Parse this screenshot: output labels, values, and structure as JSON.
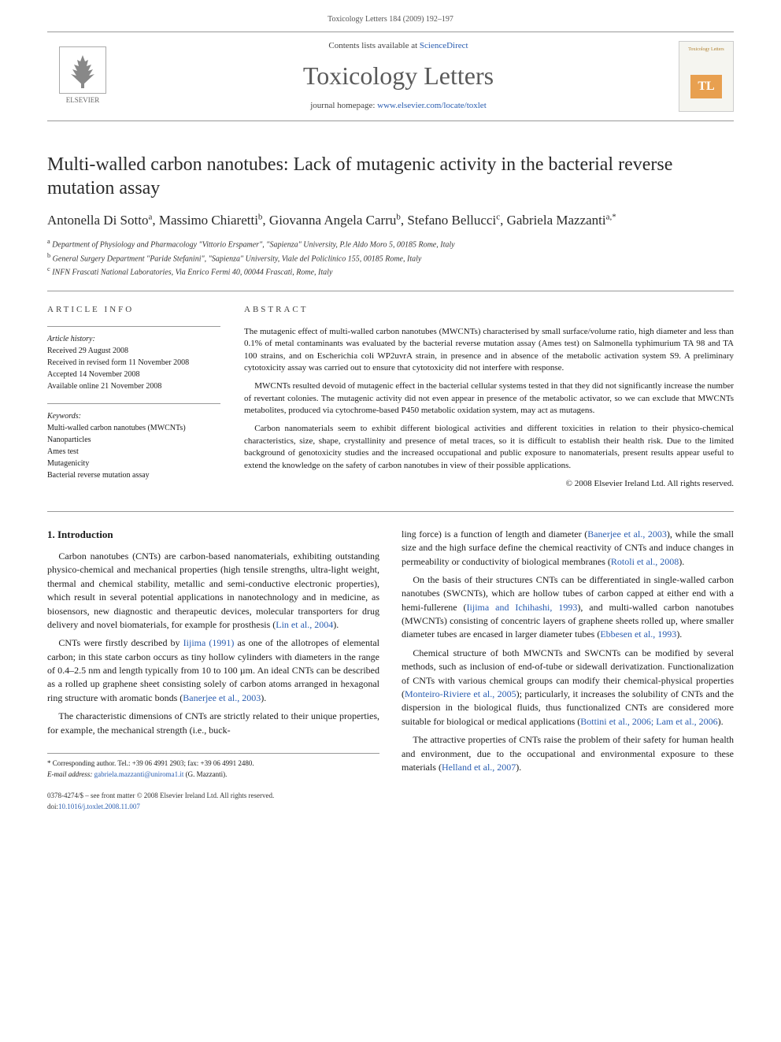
{
  "header": {
    "running": "Toxicology Letters 184 (2009) 192–197"
  },
  "contentsBar": {
    "listsLine_pre": "Contents lists available at ",
    "listsLine_link": "ScienceDirect",
    "journal": "Toxicology Letters",
    "homepage_pre": "journal homepage: ",
    "homepage_link": "www.elsevier.com/locate/toxlet",
    "publisher": "ELSEVIER",
    "coverTitle": "Toxicology Letters",
    "coverBadge": "TL"
  },
  "title": "Multi-walled carbon nanotubes: Lack of mutagenic activity in the bacterial reverse mutation assay",
  "authors_html": "Antonella Di Sotto<sup>a</sup>, Massimo Chiaretti<sup>b</sup>, Giovanna Angela Carru<sup>b</sup>, Stefano Bellucci<sup>c</sup>, Gabriela Mazzanti<sup>a,*</sup>",
  "affiliations": [
    "a Department of Physiology and Pharmacology \"Vittorio Erspamer\", \"Sapienza\" University, P.le Aldo Moro 5, 00185 Rome, Italy",
    "b General Surgery Department \"Paride Stefanini\", \"Sapienza\" University, Viale del Policlinico 155, 00185 Rome, Italy",
    "c INFN Frascati National Laboratories, Via Enrico Fermi 40, 00044 Frascati, Rome, Italy"
  ],
  "meta": {
    "heading_info": "ARTICLE INFO",
    "heading_abstract": "ABSTRACT",
    "history_label": "Article history:",
    "history": [
      "Received 29 August 2008",
      "Received in revised form 11 November 2008",
      "Accepted 14 November 2008",
      "Available online 21 November 2008"
    ],
    "keywords_label": "Keywords:",
    "keywords": [
      "Multi-walled carbon nanotubes (MWCNTs)",
      "Nanoparticles",
      "Ames test",
      "Mutagenicity",
      "Bacterial reverse mutation assay"
    ]
  },
  "abstract": {
    "p1": "The mutagenic effect of multi-walled carbon nanotubes (MWCNTs) characterised by small surface/volume ratio, high diameter and less than 0.1% of metal contaminants was evaluated by the bacterial reverse mutation assay (Ames test) on Salmonella typhimurium TA 98 and TA 100 strains, and on Escherichia coli WP2uvrA strain, in presence and in absence of the metabolic activation system S9. A preliminary cytotoxicity assay was carried out to ensure that cytotoxicity did not interfere with response.",
    "p2": "MWCNTs resulted devoid of mutagenic effect in the bacterial cellular systems tested in that they did not significantly increase the number of revertant colonies. The mutagenic activity did not even appear in presence of the metabolic activator, so we can exclude that MWCNTs metabolites, produced via cytochrome-based P450 metabolic oxidation system, may act as mutagens.",
    "p3": "Carbon nanomaterials seem to exhibit different biological activities and different toxicities in relation to their physico-chemical characteristics, size, shape, crystallinity and presence of metal traces, so it is difficult to establish their health risk. Due to the limited background of genotoxicity studies and the increased occupational and public exposure to nanomaterials, present results appear useful to extend the knowledge on the safety of carbon nanotubes in view of their possible applications.",
    "copyright": "© 2008 Elsevier Ireland Ltd. All rights reserved."
  },
  "body": {
    "section1_heading": "1. Introduction",
    "left": {
      "p1": "Carbon nanotubes (CNTs) are carbon-based nanomaterials, exhibiting outstanding physico-chemical and mechanical properties (high tensile strengths, ultra-light weight, thermal and chemical stability, metallic and semi-conductive electronic properties), which result in several potential applications in nanotechnology and in medicine, as biosensors, new diagnostic and therapeutic devices, molecular transporters for drug delivery and novel biomaterials, for example for prosthesis (",
      "p1_cite": "Lin et al., 2004",
      "p1_end": ").",
      "p2a": "CNTs were firstly described by ",
      "p2_cite1": "Iijima (1991)",
      "p2b": " as one of the allotropes of elemental carbon; in this state carbon occurs as tiny hollow cylinders with diameters in the range of 0.4–2.5 nm and length typically from 10 to 100 µm. An ideal CNTs can be described as a rolled up graphene sheet consisting solely of carbon atoms arranged in hexagonal ring structure with aromatic bonds (",
      "p2_cite2": "Banerjee et al., 2003",
      "p2c": ").",
      "p3": "The characteristic dimensions of CNTs are strictly related to their unique properties, for example, the mechanical strength (i.e., buck-"
    },
    "right": {
      "p1a": "ling force) is a function of length and diameter (",
      "p1_cite1": "Banerjee et al., 2003",
      "p1b": "), while the small size and the high surface define the chemical reactivity of CNTs and induce changes in permeability or conductivity of biological membranes (",
      "p1_cite2": "Rotoli et al., 2008",
      "p1c": ").",
      "p2a": "On the basis of their structures CNTs can be differentiated in single-walled carbon nanotubes (SWCNTs), which are hollow tubes of carbon capped at either end with a hemi-fullerene (",
      "p2_cite1": "Iijima and Ichihashi, 1993",
      "p2b": "), and multi-walled carbon nanotubes (MWCNTs) consisting of concentric layers of graphene sheets rolled up, where smaller diameter tubes are encased in larger diameter tubes (",
      "p2_cite2": "Ebbesen et al., 1993",
      "p2c": ").",
      "p3a": "Chemical structure of both MWCNTs and SWCNTs can be modified by several methods, such as inclusion of end-of-tube or sidewall derivatization. Functionalization of CNTs with various chemical groups can modify their chemical-physical properties (",
      "p3_cite1": "Monteiro-Riviere et al., 2005",
      "p3b": "); particularly, it increases the solubility of CNTs and the dispersion in the biological fluids, thus functionalized CNTs are considered more suitable for biological or medical applications (",
      "p3_cite2": "Bottini et al., 2006; Lam et al., 2006",
      "p3c": ").",
      "p4a": "The attractive properties of CNTs raise the problem of their safety for human health and environment, due to the occupational and environmental exposure to these materials (",
      "p4_cite1": "Helland et al., 2007",
      "p4b": ")."
    }
  },
  "footnotes": {
    "corr": "* Corresponding author. Tel.: +39 06 4991 2903; fax: +39 06 4991 2480.",
    "email_label": "E-mail address:",
    "email": "gabriela.mazzanti@uniroma1.it",
    "email_who": "(G. Mazzanti)."
  },
  "footer": {
    "issn": "0378-4274/$ – see front matter © 2008 Elsevier Ireland Ltd. All rights reserved.",
    "doi_label": "doi:",
    "doi": "10.1016/j.toxlet.2008.11.007"
  },
  "colors": {
    "link": "#2a5db0",
    "rule": "#999999",
    "text": "#1a1a1a",
    "cover_accent": "#e8a050"
  }
}
